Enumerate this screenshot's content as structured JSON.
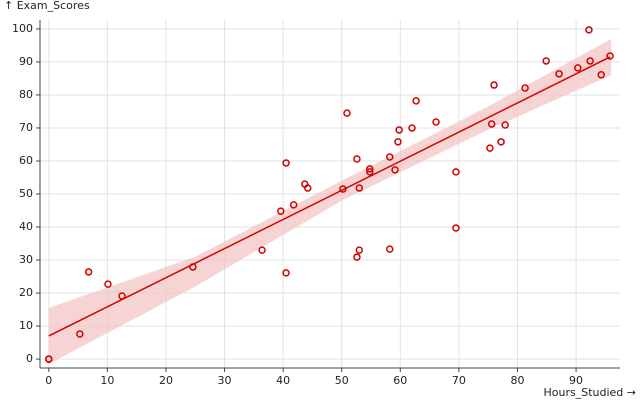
{
  "chart_data": {
    "type": "scatter",
    "x_label": "Hours_Studied →",
    "y_label": "↑ Exam_Scores",
    "xlim": [
      -1.5,
      97.5
    ],
    "ylim": [
      -2.7,
      102.7
    ],
    "xticks": [
      0,
      10,
      20,
      30,
      40,
      50,
      60,
      70,
      80,
      90
    ],
    "yticks": [
      0,
      10,
      20,
      30,
      40,
      50,
      60,
      70,
      80,
      90,
      100
    ],
    "grid": true,
    "color": "#d40000",
    "x": [
      0,
      0,
      5.3,
      6.8,
      10.1,
      12.5,
      24.6,
      36.4,
      39.6,
      40.5,
      40.5,
      41.8,
      43.7,
      44.2,
      50.2,
      50.9,
      52.6,
      52.6,
      53.0,
      53.0,
      54.8,
      54.8,
      58.2,
      58.2,
      59.1,
      59.6,
      59.8,
      62.0,
      62.7,
      66.1,
      69.5,
      69.5,
      75.3,
      75.6,
      76.0,
      77.2,
      77.9,
      81.3,
      84.9,
      87.1,
      90.3,
      92.2,
      92.4,
      94.3,
      95.8
    ],
    "y": [
      0,
      0,
      7.6,
      26.4,
      22.7,
      19.1,
      27.9,
      33.0,
      44.8,
      59.4,
      26.1,
      46.7,
      53.0,
      51.8,
      51.5,
      74.5,
      60.6,
      30.9,
      33.0,
      51.8,
      57.6,
      56.7,
      61.2,
      33.3,
      57.3,
      65.8,
      69.4,
      70.0,
      78.2,
      71.8,
      56.7,
      39.7,
      63.9,
      71.2,
      83.0,
      65.8,
      70.9,
      82.1,
      90.3,
      86.4,
      88.2,
      99.7,
      90.3,
      86.1,
      91.8
    ],
    "fit": {
      "x": [
        0,
        95.8
      ],
      "y": [
        7.0,
        91.5
      ],
      "color": "#d40000"
    },
    "band": {
      "x": [
        0,
        25,
        50,
        75,
        96
      ],
      "upper": [
        15.5,
        31,
        54,
        76.5,
        97
      ],
      "lower": [
        -1.5,
        22,
        48,
        69.5,
        86
      ],
      "color": "#f4c2c2"
    }
  }
}
